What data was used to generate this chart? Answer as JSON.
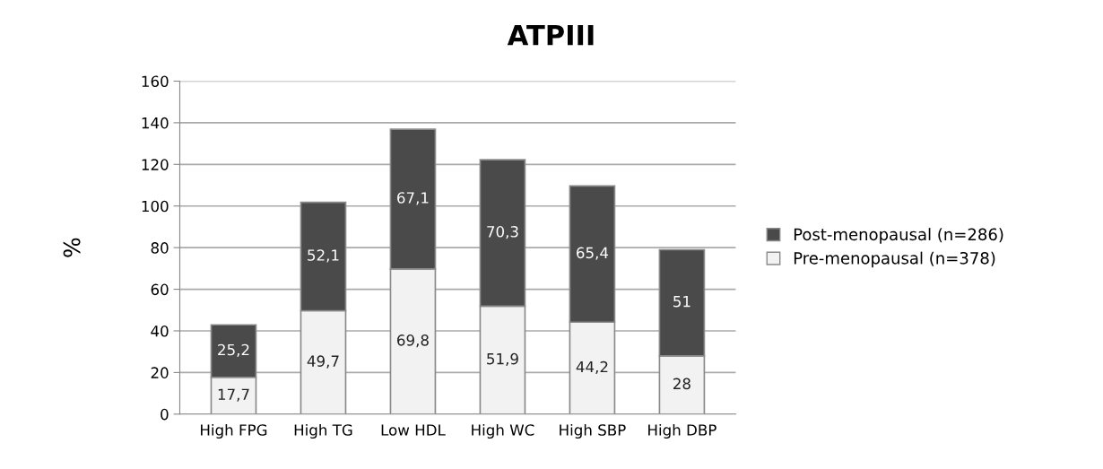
{
  "chart_data": {
    "type": "bar",
    "title": "ATPIII",
    "ylabel": "%",
    "stacked": true,
    "categories": [
      "High FPG",
      "High TG",
      "Low HDL",
      "High WC",
      "High SBP",
      "High DBP"
    ],
    "series": [
      {
        "name": "Pre-menopausal (n=378)",
        "color": "#f2f2f2",
        "values": [
          17.7,
          49.7,
          69.8,
          51.9,
          44.2,
          28
        ],
        "value_labels": [
          "17,7",
          "49,7",
          "69,8",
          "51,9",
          "44,2",
          "28"
        ]
      },
      {
        "name": "Post-menopausal (n=286)",
        "color": "#4a4a4a",
        "values": [
          25.2,
          52.1,
          67.1,
          70.3,
          65.4,
          51
        ],
        "value_labels": [
          "25,2",
          "52,1",
          "67,1",
          "70,3",
          "65,4",
          "51"
        ]
      }
    ],
    "ylim": [
      0,
      160
    ],
    "yticks": [
      0,
      20,
      40,
      60,
      80,
      100,
      120,
      140,
      160
    ],
    "grid": "y",
    "legend": "right"
  }
}
